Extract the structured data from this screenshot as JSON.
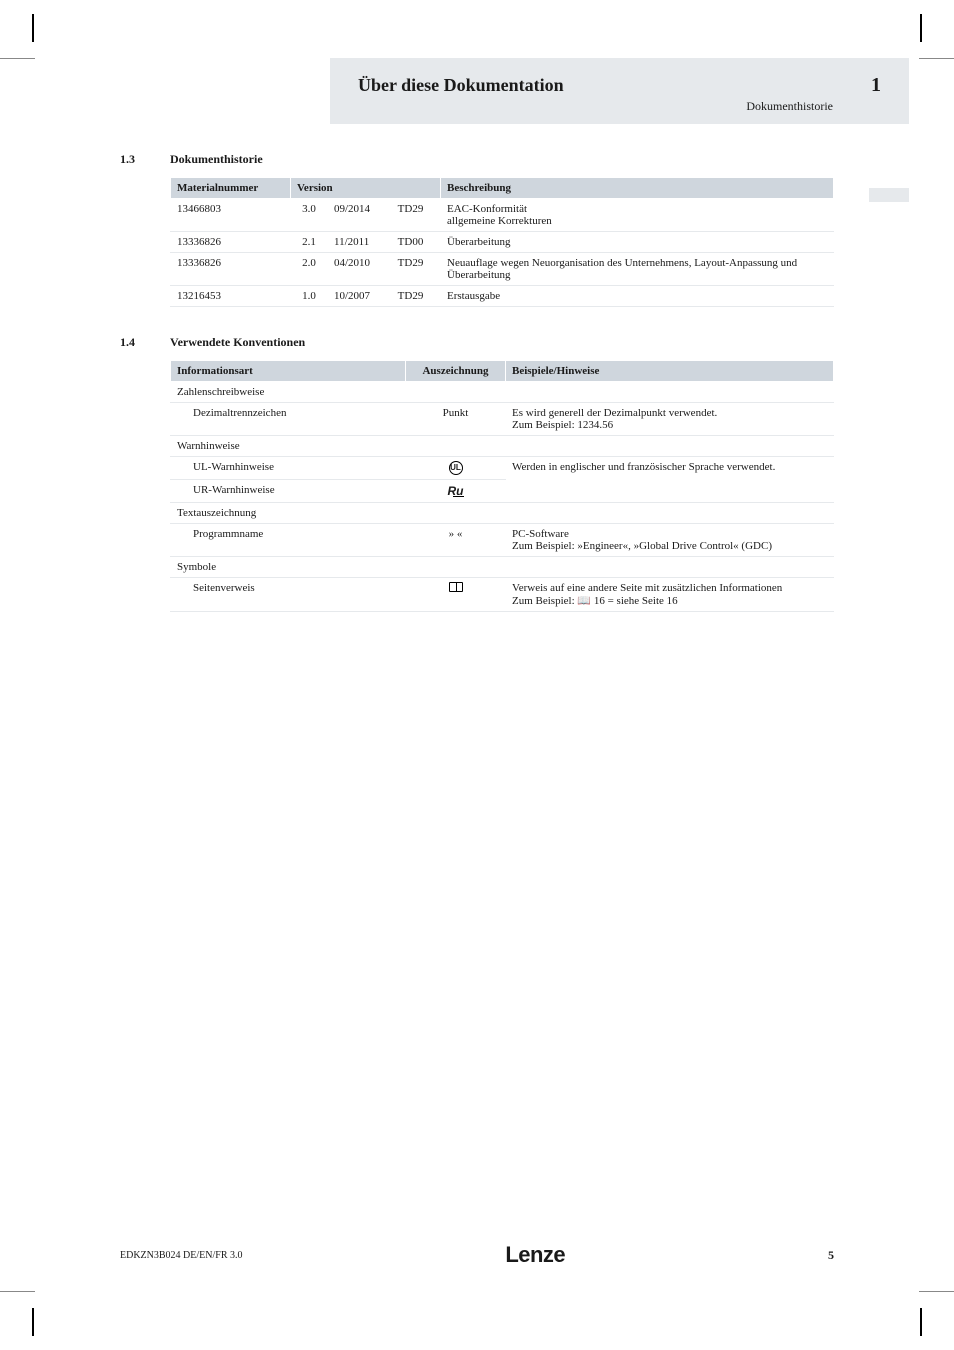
{
  "header": {
    "title": "Über diese Dokumentation",
    "subtitle": "Dokumenthistorie",
    "chapter": "1"
  },
  "sections": {
    "s1": {
      "num": "1.3",
      "title": "Dokumenthistorie"
    },
    "s2": {
      "num": "1.4",
      "title": "Verwendete Konventionen"
    }
  },
  "table1": {
    "headers": [
      "Materialnummer",
      "Version",
      "Beschreibung"
    ],
    "rows": [
      {
        "m": "13466803",
        "v1": "3.0",
        "v2": "09/2014",
        "v3": "TD29",
        "d": "EAC-Konformität\nallgemeine Korrekturen"
      },
      {
        "m": "13336826",
        "v1": "2.1",
        "v2": "11/2011",
        "v3": "TD00",
        "d": "Überarbeitung"
      },
      {
        "m": "13336826",
        "v1": "2.0",
        "v2": "04/2010",
        "v3": "TD29",
        "d": "Neuauflage wegen Neuorganisation des Unternehmens, Layout-Anpassung und Überarbeitung"
      },
      {
        "m": "13216453",
        "v1": "1.0",
        "v2": "10/2007",
        "v3": "TD29",
        "d": "Erstausgabe"
      }
    ]
  },
  "table2": {
    "headers": [
      "Informationsart",
      "Auszeichnung",
      "Beispiele/Hinweise"
    ],
    "group1": "Zahlenschreibweise",
    "r1": {
      "a": "Dezimaltrennzeichen",
      "b": "Punkt",
      "c": "Es wird generell der Dezimalpunkt verwendet.\nZum Beispiel: 1234.56"
    },
    "group2": "Warnhinweise",
    "r2": {
      "a": "UL-Warnhinweise"
    },
    "r3": {
      "a": "UR-Warnhinweise"
    },
    "warn_note": "Werden in englischer und französischer Sprache verwendet.",
    "group3": "Textauszeichnung",
    "r4": {
      "a": "Programmname",
      "b": "» «",
      "c": "PC-Software\nZum Beispiel: »Engineer«, »Global Drive Control« (GDC)"
    },
    "group4": "Symbole",
    "r5": {
      "a": "Seitenverweis",
      "c": "Verweis auf eine andere Seite mit zusätzlichen Informationen\nZum Beispiel: 📖 16 = siehe Seite 16"
    }
  },
  "footer": {
    "docid": "EDKZN3B024  DE/EN/FR  3.0",
    "brand": "Lenze",
    "page": "5"
  },
  "colors": {
    "band": "#e6e9ec",
    "th_bg": "#cfd6dd",
    "text": "#1a1a1a"
  }
}
